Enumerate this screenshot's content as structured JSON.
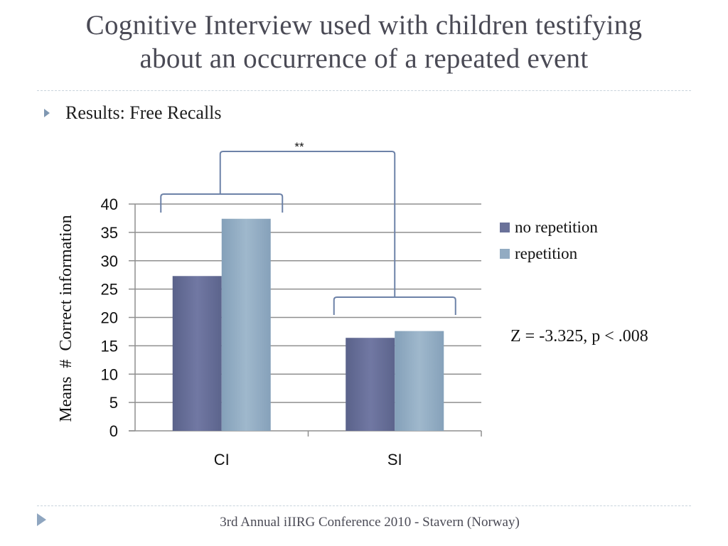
{
  "slide": {
    "title_line1": "Cognitive Interview used with children testifying",
    "title_line2": "about an occurrence of a repeated event",
    "bullet": "Results: Free Recalls",
    "stat_annotation": "Z = -3.325, p < .008",
    "footer": "3rd Annual iIIRG Conference 2010 - Stavern (Norway)"
  },
  "chart_data": {
    "type": "bar",
    "categories": [
      "CI",
      "SI"
    ],
    "series": [
      {
        "name": "no repetition",
        "values": [
          27.3,
          16.4
        ],
        "color": "#6a7199"
      },
      {
        "name": "repetition",
        "values": [
          37.4,
          17.6
        ],
        "color": "#92abc2"
      }
    ],
    "ylabel": "Means  #  Correct information",
    "ylim": [
      0,
      40
    ],
    "yticks": [
      0,
      5,
      10,
      15,
      20,
      25,
      30,
      35,
      40
    ],
    "grid": true,
    "legend": "right",
    "significance_label": "**"
  }
}
